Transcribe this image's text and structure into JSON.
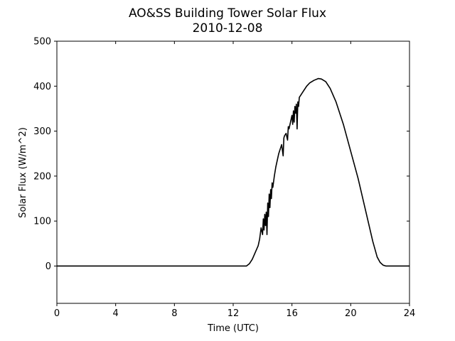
{
  "chart_data": {
    "type": "line",
    "title": "AO&SS Building Tower Solar Flux",
    "subtitle": "2010-12-08",
    "xlabel": "Time (UTC)",
    "ylabel": "Solar Flux (W/m^2)",
    "xlim": [
      0,
      24
    ],
    "ylim": [
      -83,
      500
    ],
    "xticks": [
      0,
      4,
      8,
      12,
      16,
      20,
      24
    ],
    "yticks": [
      0,
      100,
      200,
      300,
      400,
      500
    ],
    "grid": false,
    "legend": "none",
    "series": [
      {
        "color": "#000000",
        "x": [
          0,
          4,
          8,
          12,
          12.9,
          13.1,
          13.3,
          13.5,
          13.7,
          13.8,
          13.9,
          14.0,
          14.05,
          14.1,
          14.15,
          14.2,
          14.25,
          14.3,
          14.35,
          14.4,
          14.45,
          14.5,
          14.55,
          14.6,
          14.65,
          14.7,
          14.8,
          14.9,
          15.0,
          15.1,
          15.2,
          15.3,
          15.4,
          15.45,
          15.5,
          15.6,
          15.7,
          15.75,
          15.8,
          15.9,
          16.0,
          16.05,
          16.1,
          16.15,
          16.2,
          16.25,
          16.3,
          16.35,
          16.4,
          16.45,
          16.5,
          16.6,
          16.8,
          17.0,
          17.2,
          17.5,
          17.8,
          18.0,
          18.3,
          18.6,
          19.0,
          19.5,
          20.0,
          20.5,
          21.0,
          21.5,
          21.8,
          22.0,
          22.2,
          22.4,
          22.6,
          22.8,
          23.0,
          24
        ],
        "y": [
          0,
          0,
          0,
          0,
          0,
          5,
          15,
          30,
          45,
          60,
          85,
          70,
          105,
          80,
          115,
          90,
          120,
          70,
          140,
          110,
          160,
          130,
          170,
          150,
          185,
          175,
          200,
          220,
          235,
          250,
          260,
          270,
          245,
          285,
          290,
          295,
          280,
          310,
          305,
          320,
          335,
          315,
          345,
          320,
          355,
          340,
          360,
          305,
          365,
          355,
          375,
          380,
          390,
          400,
          407,
          413,
          417,
          416,
          410,
          395,
          365,
          315,
          255,
          195,
          125,
          55,
          20,
          8,
          2,
          0,
          0,
          0,
          0,
          0
        ]
      }
    ]
  }
}
